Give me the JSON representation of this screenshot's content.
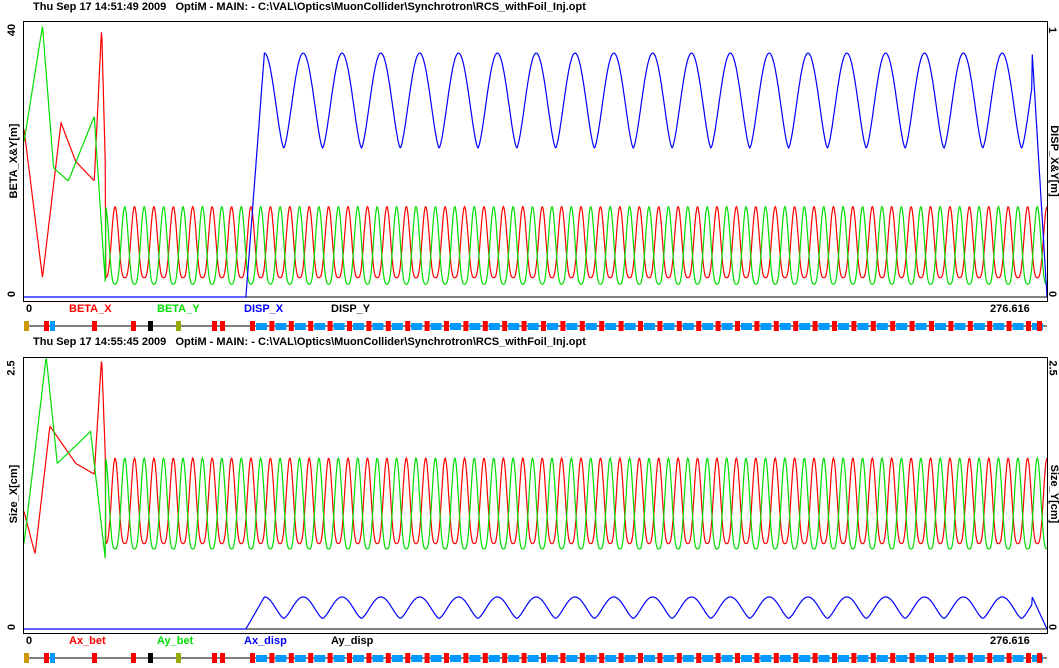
{
  "chart_data": [
    {
      "type": "line",
      "title": "Thu Sep 17 14:51:49 2009   OptiM - MAIN: - C:\\VAL\\Optics\\MuonCollider\\Synchrotron\\RCS_withFoil_Inj.opt",
      "xlabel_start": "0",
      "xlabel_end": "276.616",
      "xlim": [
        0,
        276.616
      ],
      "left_axis": {
        "label": "BETA_X&Y[m]",
        "ticks": [
          "0",
          "40"
        ],
        "ylim": [
          0,
          42
        ]
      },
      "right_axis": {
        "label": "DISP_X&Y[m]",
        "ticks": [
          "0",
          "1"
        ],
        "ylim": [
          0,
          1
        ]
      },
      "legend": [
        {
          "name": "BETA_X",
          "color": "#ff0000"
        },
        {
          "name": "BETA_Y",
          "color": "#00dd00"
        },
        {
          "name": "DISP_X",
          "color": "#0000ff"
        },
        {
          "name": "DISP_Y",
          "color": "#000000"
        }
      ],
      "series": [
        {
          "name": "BETA_X",
          "axis": "left",
          "color": "#ff0000",
          "injection_x": [
            0,
            5,
            10,
            14,
            19,
            21,
            22
          ],
          "injection_y": [
            26,
            3,
            27,
            21,
            18,
            42,
            20
          ],
          "cell_min": 3,
          "cell_max": 14,
          "cell_phase": 0.0
        },
        {
          "name": "BETA_Y",
          "axis": "left",
          "color": "#00dd00",
          "injection_x": [
            0,
            5,
            8,
            12,
            19,
            22
          ],
          "injection_y": [
            24,
            42,
            20,
            18,
            28,
            2
          ],
          "cell_min": 2,
          "cell_max": 14,
          "cell_phase": 0.5
        },
        {
          "name": "DISP_X",
          "axis": "right",
          "color": "#0000ff",
          "flat_until": 60,
          "cell_min": 0.55,
          "cell_max": 0.9
        }
      ]
    },
    {
      "type": "line",
      "title": "Thu Sep 17 14:55:45 2009   OptiM - MAIN: - C:\\VAL\\Optics\\MuonCollider\\Synchrotron\\RCS_withFoil_Inj.opt",
      "xlabel_start": "0",
      "xlabel_end": "276.616",
      "xlim": [
        0,
        276.616
      ],
      "left_axis": {
        "label": "Size_X[cm]",
        "ticks": [
          "0",
          "2.5"
        ],
        "ylim": [
          0,
          2.5
        ]
      },
      "right_axis": {
        "label": "Size_Y[cm]",
        "ticks": [
          "0",
          "2.5"
        ],
        "ylim": [
          0,
          2.5
        ]
      },
      "legend": [
        {
          "name": "Ax_bet",
          "color": "#ff0000"
        },
        {
          "name": "Ay_bet",
          "color": "#00dd00"
        },
        {
          "name": "Ax_disp",
          "color": "#0000ff"
        },
        {
          "name": "Ay_disp",
          "color": "#000000"
        }
      ],
      "series": [
        {
          "name": "Ax_bet",
          "axis": "left",
          "color": "#ff0000",
          "injection_x": [
            0,
            3,
            7,
            14,
            19,
            21,
            22
          ],
          "injection_y": [
            1.1,
            0.7,
            1.9,
            1.55,
            1.45,
            2.55,
            1.6
          ],
          "cell_min": 0.8,
          "cell_max": 1.6,
          "cell_phase": 0.0
        },
        {
          "name": "Ay_bet",
          "axis": "left",
          "color": "#00dd00",
          "injection_x": [
            0,
            6,
            9,
            18,
            22
          ],
          "injection_y": [
            0.8,
            2.55,
            1.55,
            1.85,
            0.65
          ],
          "cell_min": 0.75,
          "cell_max": 1.6,
          "cell_phase": 0.5
        },
        {
          "name": "Ax_disp",
          "axis": "right",
          "color": "#0000ff",
          "flat_until": 60,
          "cell_min": 0.1,
          "cell_max": 0.3
        }
      ]
    }
  ]
}
